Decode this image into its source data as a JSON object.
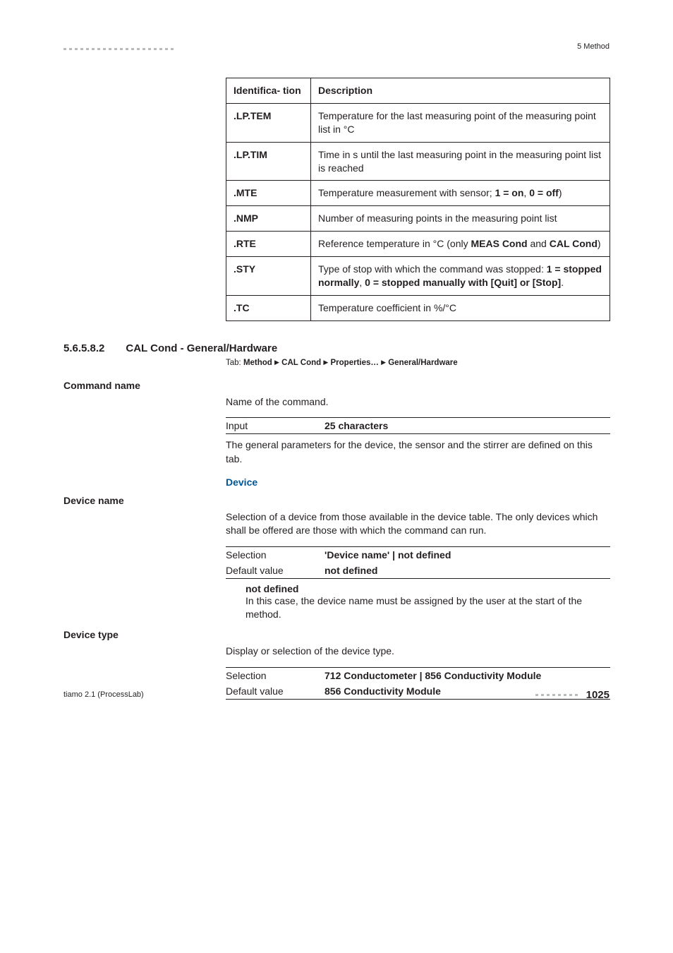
{
  "header": {
    "right": "5 Method"
  },
  "ident_table": {
    "head": [
      "Identifica-\ntion",
      "Description"
    ],
    "rows": [
      [
        ".LP.TEM",
        "Temperature for the last measuring point of the measuring point list in °C"
      ],
      [
        ".LP.TIM",
        "Time in s until the last measuring point in the measuring point list is reached"
      ],
      [
        ".MTE",
        "Temperature measurement with sensor; <b>1 = on</b>, <b>0 = off</b>)"
      ],
      [
        ".NMP",
        "Number of measuring points in the measuring point list"
      ],
      [
        ".RTE",
        "Reference temperature in °C (only <b>MEAS Cond</b> and <b>CAL Cond</b>)"
      ],
      [
        ".STY",
        "Type of stop with which the command was stopped: <b>1 = stopped normally</b>, <b>0 = stopped manually with [Quit] or [Stop]</b>."
      ],
      [
        ".TC",
        "Temperature coefficient in %/°C"
      ]
    ]
  },
  "section": {
    "num": "5.6.5.8.2",
    "title": "CAL Cond - General/Hardware",
    "tab_prefix": "Tab:",
    "tab_path": [
      "Method",
      "CAL Cond",
      "Properties…",
      "General/Hardware"
    ]
  },
  "command_name": {
    "label": "Command name",
    "intro": "Name of the command.",
    "input_label": "Input",
    "input_value": "25 characters",
    "post": "The general parameters for the device, the sensor and the stirrer are defined on this tab."
  },
  "device_head": "Device",
  "device_name": {
    "label": "Device name",
    "intro": "Selection of a device from those available in the device table. The only devices which shall be offered are those with which the command can run.",
    "sel_label": "Selection",
    "sel_value": "'Device name' | not defined",
    "def_label": "Default value",
    "def_value": "not defined",
    "sub_head": "not defined",
    "sub_text": "In this case, the device name must be assigned by the user at the start of the method."
  },
  "device_type": {
    "label": "Device type",
    "intro": "Display or selection of the device type.",
    "sel_label": "Selection",
    "sel_value": "712 Conductometer | 856 Conductivity Module",
    "def_label": "Default value",
    "def_value": "856 Conductivity Module"
  },
  "footer": {
    "left": "tiamo 2.1 (ProcessLab)",
    "page": "1025"
  }
}
